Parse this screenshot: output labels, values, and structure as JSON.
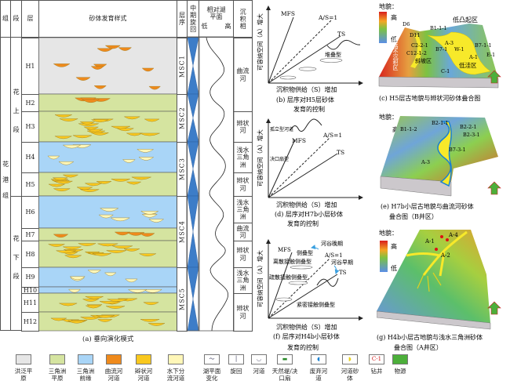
{
  "panel_a": {
    "headers": {
      "formation": "组",
      "member": "段",
      "layer": "层",
      "sand_pattern": "砂体发育样式",
      "sequence": "层序",
      "mid_cycle": "中期旋回",
      "lake_level": "相对湖平面",
      "low": "低",
      "high": "高",
      "facies": "沉积相"
    },
    "formation": "花港组",
    "members": [
      {
        "label": "花上段"
      },
      {
        "label": "花下段"
      }
    ],
    "layers": [
      "H1",
      "H2",
      "H3",
      "H4",
      "H5",
      "H6",
      "H7",
      "H8",
      "H9",
      "H10",
      "H11",
      "H12"
    ],
    "sequences": [
      "MSC1",
      "MSC2",
      "MSC3",
      "MSC4",
      "MSC5"
    ],
    "facies": [
      "曲流河",
      "辫状河",
      "浅水三角洲",
      "辫状河",
      "浅水三角洲",
      "曲流河",
      "辫状河",
      "浅水三角洲",
      "辫状河"
    ],
    "caption": "(a) 垂向演化模式"
  },
  "panel_b": {
    "y_axis": "可容纳空间（A）增大",
    "x_axis": "沉积物供给（S）增加",
    "lines": [
      "MFS",
      "A/S=1",
      "TS"
    ],
    "annotation": "堆叠型",
    "caption_1": "(b) 层序对H5层砂体",
    "caption_2": "发育的控制"
  },
  "panel_d": {
    "y_axis": "可容纳空间（A）增大",
    "x_axis": "沉积物供给（S）增加",
    "lines": [
      "MFS",
      "A/S=1",
      "TS"
    ],
    "annotation_1": "孤立型河道",
    "annotation_2": "决口扇型",
    "caption_1": "(d) 层序对H7b小层砂体",
    "caption_2": "发育的控制"
  },
  "panel_f": {
    "y_axis": "可容纳空间（A）增大",
    "x_axis": "沉积物供给（S）增加",
    "lines": [
      "MFS",
      "A/S=1",
      "TS"
    ],
    "annotations": [
      "河谷晚期",
      "侧叠型",
      "河谷早期",
      "离散接触侧叠型",
      "疏散接触侧叠型",
      "紧密接触侧叠型"
    ],
    "caption_1": "(f) 层序对H4b小层砂体",
    "caption_2": "发育的控制"
  },
  "panel_c": {
    "legend_title": "地貌：",
    "high": "高",
    "low": "低",
    "labels": [
      "D6",
      "B1-1-1",
      "低凸起区",
      "D11",
      "C2-2-1",
      "C12-1-2",
      "A-3",
      "B7-1",
      "W-1",
      "B7-1-1",
      "A-1",
      "低洼区",
      "E-1",
      "C-1"
    ],
    "zone_1": "过路不沉积区",
    "zone_2": "斜坡区",
    "caption": "(c) H5层古地貌与辫状河砂体叠合图"
  },
  "panel_e": {
    "legend_title": "地貌：",
    "high": "高",
    "low": "低",
    "labels": [
      "B1-1-2",
      "B2-1-1",
      "B2-2-1",
      "B2-3-1",
      "B7-3-1",
      "A-3"
    ],
    "caption_1": "(e) H7b小层古地貌与曲流河砂体",
    "caption_2": "叠合图（B井区）"
  },
  "panel_g": {
    "legend_title": "地貌：",
    "high": "高",
    "low": "低",
    "labels": [
      "A-1",
      "A-4",
      "A-2"
    ],
    "caption_1": "(g) H4b小层古地貌与浅水三角洲砂体",
    "caption_2": "叠合图（A井区）"
  },
  "legend": [
    {
      "label": "洪泛平原",
      "color": "#e6e6e6"
    },
    {
      "label": "三角洲平原",
      "color": "#d5e4a0"
    },
    {
      "label": "三角洲前缘",
      "color": "#a9d5f7"
    },
    {
      "label": "曲流河河道",
      "color": "#ef8a1c"
    },
    {
      "label": "辫状河河道",
      "color": "#f9c81e"
    },
    {
      "label": "水下分流河道",
      "color": "#fff7b8"
    },
    {
      "label": "湖平面变化"
    },
    {
      "label": "旋回"
    },
    {
      "label": "河道"
    },
    {
      "label": "天然堤/决口扇"
    },
    {
      "label": "废弃河道"
    },
    {
      "label": "河道砂体"
    },
    {
      "label": "钻井",
      "symbol": "C-1"
    },
    {
      "label": "物源"
    }
  ],
  "colors": {
    "flood": "#e6e6e6",
    "delta_plain": "#d5e4a0",
    "delta_front": "#a9d5f7",
    "meander": "#ef8a1c",
    "braided": "#f9c81e",
    "underwater": "#fff7b8"
  }
}
